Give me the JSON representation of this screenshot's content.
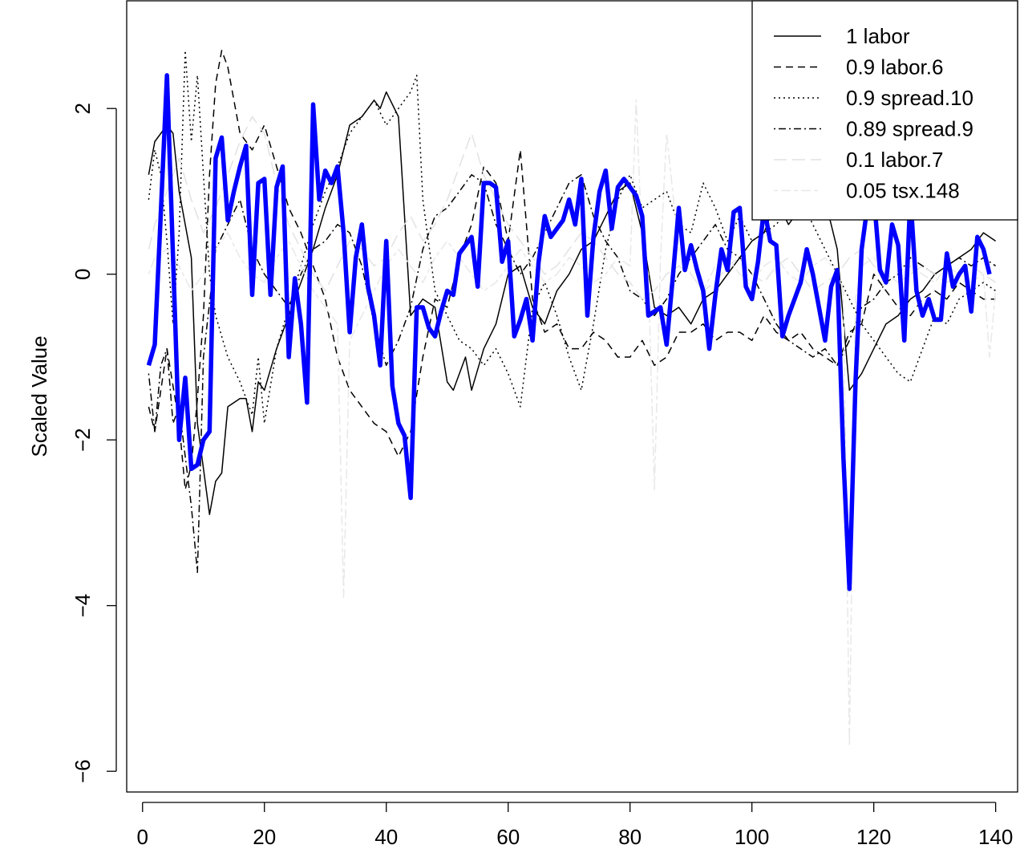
{
  "chart_data": {
    "type": "line",
    "title": "",
    "xlabel": "",
    "ylabel": "Scaled Value",
    "xlim": [
      -2.6,
      143.6
    ],
    "ylim": [
      -6.25,
      3.3
    ],
    "xticks": [
      0,
      20,
      40,
      60,
      80,
      100,
      120,
      140
    ],
    "yticks": [
      -6,
      -4,
      -2,
      0,
      2
    ],
    "legend_position": "top-right",
    "grid": false,
    "series": [
      {
        "name": "1 labor",
        "color": "#000000",
        "dash": "solid",
        "width": "thin",
        "x": [
          1,
          2,
          4,
          5,
          6,
          8,
          9,
          11,
          12,
          13,
          14,
          16,
          17,
          18,
          19,
          20,
          22,
          24,
          26,
          28,
          30,
          32,
          34,
          36,
          37,
          38,
          39,
          40,
          42,
          44,
          46,
          48,
          50,
          51,
          53,
          54,
          56,
          58,
          60,
          62,
          64,
          66,
          68,
          70,
          72,
          74,
          76,
          78,
          80,
          82,
          84,
          86,
          88,
          90,
          92,
          94,
          96,
          98,
          100,
          102,
          104,
          106,
          108,
          110,
          112,
          114,
          116,
          118,
          120,
          122,
          124,
          126,
          128,
          130,
          132,
          134,
          136,
          138,
          140
        ],
        "values": [
          1.2,
          1.6,
          1.8,
          1.7,
          1.0,
          0.2,
          -1.8,
          -2.9,
          -2.5,
          -2.4,
          -1.6,
          -1.5,
          -1.5,
          -1.9,
          -1.3,
          -1.4,
          -0.9,
          -0.5,
          -0.1,
          0.3,
          0.8,
          1.2,
          1.8,
          1.9,
          2.0,
          2.1,
          2.0,
          2.2,
          1.9,
          -0.5,
          -0.3,
          -0.4,
          -1.3,
          -1.4,
          -1.0,
          -1.4,
          -0.9,
          -0.6,
          0.0,
          0.1,
          -0.4,
          -0.6,
          -0.2,
          0.0,
          0.3,
          0.4,
          0.7,
          1.0,
          1.1,
          0.5,
          -0.4,
          -0.5,
          -0.4,
          -0.6,
          -0.3,
          -0.2,
          0.0,
          0.2,
          0.4,
          0.5,
          0.9,
          0.6,
          0.8,
          1.1,
          0.9,
          0.3,
          -1.4,
          -1.2,
          -0.9,
          -0.6,
          -0.5,
          -0.3,
          -0.2,
          0.0,
          0.1,
          0.2,
          0.3,
          0.5,
          0.4
        ]
      },
      {
        "name": "0.9 labor.6",
        "color": "#000000",
        "dash": "dashed",
        "width": "thin",
        "x": [
          1,
          2,
          4,
          6,
          7,
          8,
          9,
          10,
          11,
          12,
          13,
          14,
          16,
          18,
          20,
          22,
          24,
          26,
          28,
          30,
          32,
          34,
          36,
          38,
          40,
          42,
          44,
          46,
          48,
          50,
          52,
          54,
          56,
          58,
          60,
          62,
          64,
          66,
          68,
          70,
          72,
          74,
          76,
          78,
          80,
          82,
          84,
          86,
          88,
          90,
          92,
          94,
          96,
          98,
          100,
          102,
          104,
          106,
          108,
          110,
          112,
          114,
          116,
          118,
          120,
          122,
          124,
          126,
          128,
          130,
          132,
          134,
          136,
          138,
          140
        ],
        "values": [
          -1.6,
          -1.9,
          -0.9,
          -1.8,
          -2.6,
          -2.3,
          -1.5,
          -0.5,
          1.2,
          2.3,
          2.7,
          2.5,
          1.7,
          1.5,
          1.8,
          1.3,
          0.8,
          0.5,
          0.1,
          -0.3,
          -1.0,
          -1.4,
          -1.6,
          -1.8,
          -1.9,
          -2.2,
          -1.9,
          -1.0,
          -0.3,
          -0.4,
          0.2,
          0.6,
          1.3,
          1.1,
          0.4,
          1.5,
          -0.3,
          -0.7,
          -0.6,
          -0.9,
          -0.9,
          -0.7,
          -0.8,
          -1.0,
          -1.0,
          -0.8,
          -1.1,
          -1.0,
          -0.7,
          -0.7,
          -0.6,
          -0.8,
          -0.7,
          -0.7,
          -0.8,
          -0.5,
          -0.7,
          -0.8,
          -0.7,
          -0.9,
          -1.0,
          -1.1,
          -0.7,
          -0.6,
          0.0,
          -0.2,
          -0.4,
          -0.5,
          -0.3,
          -0.2,
          -0.3,
          -0.1,
          -0.2,
          -0.3,
          -0.3
        ]
      },
      {
        "name": "0.9 spread.10",
        "color": "#000000",
        "dash": "dotted",
        "width": "thin",
        "x": [
          1,
          2,
          3,
          4,
          5,
          6,
          7,
          8,
          9,
          10,
          11,
          12,
          14,
          16,
          18,
          19,
          20,
          22,
          24,
          26,
          28,
          30,
          32,
          34,
          36,
          38,
          40,
          42,
          44,
          45,
          46,
          48,
          50,
          52,
          54,
          56,
          58,
          60,
          62,
          64,
          66,
          68,
          70,
          72,
          74,
          76,
          78,
          80,
          82,
          84,
          86,
          88,
          90,
          92,
          94,
          96,
          98,
          100,
          102,
          104,
          106,
          108,
          110,
          112,
          114,
          116,
          118,
          120,
          122,
          124,
          126,
          128,
          130,
          132,
          134,
          136,
          138,
          140
        ],
        "values": [
          0.9,
          1.5,
          1.2,
          0.4,
          -0.6,
          0.5,
          2.7,
          1.6,
          2.4,
          1.2,
          0.0,
          -0.5,
          -1.0,
          -1.3,
          -1.7,
          -1.0,
          -1.8,
          -0.9,
          -0.4,
          0.1,
          0.6,
          1.0,
          1.3,
          1.7,
          1.9,
          2.1,
          1.8,
          2.0,
          2.2,
          2.4,
          0.9,
          -0.2,
          -0.5,
          -0.8,
          -0.9,
          -1.1,
          -0.9,
          -1.2,
          -1.6,
          -0.4,
          -0.1,
          -0.5,
          -1.0,
          -1.4,
          -0.6,
          0.3,
          0.9,
          1.2,
          0.8,
          0.9,
          1.0,
          0.6,
          0.5,
          1.1,
          0.8,
          0.4,
          0.7,
          0.4,
          0.5,
          0.6,
          0.8,
          0.9,
          0.6,
          0.3,
          0.0,
          -0.3,
          -0.6,
          -0.8,
          -1.0,
          -1.2,
          -1.3,
          -0.9,
          -0.5,
          -0.6,
          -0.3,
          -0.2,
          -0.1,
          -0.2
        ]
      },
      {
        "name": "0.89 spread.9",
        "color": "#000000",
        "dash": "dotdash",
        "width": "thin",
        "x": [
          1,
          2,
          3,
          4,
          5,
          6,
          7,
          8,
          9,
          10,
          12,
          14,
          16,
          18,
          20,
          22,
          24,
          26,
          28,
          30,
          32,
          34,
          36,
          38,
          40,
          42,
          44,
          46,
          48,
          50,
          52,
          54,
          56,
          58,
          60,
          62,
          64,
          66,
          68,
          70,
          72,
          74,
          76,
          78,
          80,
          82,
          84,
          86,
          88,
          90,
          92,
          94,
          96,
          98,
          100,
          102,
          104,
          106,
          108,
          110,
          112,
          114,
          116,
          118,
          120,
          122,
          124,
          126,
          128,
          130,
          132,
          134,
          136,
          138,
          140
        ],
        "values": [
          -1.2,
          -1.9,
          -1.1,
          -0.9,
          -1.8,
          -1.6,
          -2.2,
          -2.8,
          -3.6,
          -1.0,
          0.3,
          0.6,
          0.9,
          0.3,
          0.0,
          -0.2,
          -0.4,
          0.0,
          0.3,
          0.4,
          0.6,
          0.5,
          0.1,
          -0.6,
          -1.1,
          -0.8,
          -0.4,
          0.3,
          0.7,
          0.8,
          1.0,
          1.2,
          1.1,
          0.6,
          0.3,
          0.0,
          0.2,
          0.5,
          0.8,
          1.1,
          1.2,
          0.7,
          0.4,
          0.2,
          -0.2,
          -0.3,
          -0.5,
          -0.3,
          0.0,
          0.2,
          0.4,
          0.6,
          0.3,
          0.2,
          0.0,
          -0.3,
          -0.6,
          -0.8,
          -0.9,
          -1.0,
          -0.9,
          -1.1,
          -0.8,
          -0.4,
          -0.3,
          -0.1,
          0.0,
          0.2,
          0.1,
          0.0,
          0.1,
          0.2,
          0.1,
          0.2,
          0.1
        ]
      },
      {
        "name": "0.1 labor.7",
        "color": "#e2e2e2",
        "dash": "longdash",
        "width": "thin",
        "x": [
          1,
          2,
          4,
          6,
          8,
          10,
          12,
          14,
          16,
          18,
          20,
          22,
          24,
          26,
          28,
          30,
          32,
          34,
          36,
          38,
          40,
          42,
          44,
          46,
          48,
          50,
          52,
          54,
          56,
          58,
          60,
          62,
          64,
          66,
          68,
          70,
          72,
          74,
          76,
          78,
          80,
          82,
          84,
          86,
          88,
          90,
          92,
          94,
          96,
          98,
          100,
          102,
          104,
          106,
          108,
          110,
          112,
          114,
          116,
          118,
          120,
          122,
          124,
          126,
          128,
          130,
          132,
          134,
          136,
          138,
          140
        ],
        "values": [
          0.3,
          0.6,
          1.0,
          1.4,
          0.9,
          0.5,
          0.8,
          1.2,
          1.6,
          1.9,
          1.7,
          1.1,
          0.6,
          0.3,
          0.0,
          -0.2,
          0.1,
          0.4,
          0.3,
          0.1,
          0.2,
          0.5,
          0.7,
          0.4,
          0.6,
          0.9,
          1.3,
          1.7,
          1.2,
          0.9,
          0.6,
          0.4,
          0.2,
          0.0,
          0.1,
          0.3,
          0.5,
          0.4,
          0.2,
          0.0,
          -0.1,
          -0.3,
          -0.2,
          0.0,
          0.1,
          0.0,
          -0.2,
          -0.1,
          0.1,
          0.2,
          0.0,
          -0.1,
          0.1,
          0.2,
          0.0,
          -0.2,
          -0.1,
          0.0,
          0.2,
          0.3,
          0.1,
          0.0,
          -0.1,
          0.0,
          0.1,
          0.0,
          -0.1,
          0.0,
          0.1,
          0.0,
          -0.1
        ]
      },
      {
        "name": "0.05 tsx.148",
        "color": "#e8e8e8",
        "dash": "twodash",
        "width": "thin",
        "x": [
          1,
          2,
          4,
          6,
          8,
          10,
          12,
          14,
          16,
          18,
          20,
          22,
          24,
          26,
          28,
          30,
          32,
          33,
          34,
          36,
          38,
          40,
          42,
          44,
          46,
          48,
          50,
          52,
          54,
          56,
          58,
          60,
          62,
          64,
          66,
          68,
          70,
          72,
          74,
          76,
          78,
          80,
          81,
          82,
          83,
          84,
          85,
          86,
          88,
          90,
          92,
          94,
          96,
          98,
          100,
          102,
          104,
          106,
          108,
          110,
          112,
          114,
          115,
          116,
          117,
          118,
          120,
          122,
          124,
          126,
          128,
          130,
          132,
          134,
          136,
          138,
          139,
          140
        ],
        "values": [
          0.0,
          0.2,
          0.3,
          0.1,
          -0.2,
          0.0,
          0.3,
          0.5,
          0.2,
          0.0,
          -0.1,
          0.2,
          0.4,
          0.1,
          -0.2,
          -0.4,
          -0.6,
          -3.9,
          -0.8,
          -0.5,
          -0.2,
          0.1,
          0.3,
          0.1,
          -0.1,
          0.2,
          0.4,
          0.2,
          0.0,
          -0.2,
          -0.1,
          0.1,
          0.3,
          0.1,
          -0.1,
          0.0,
          0.2,
          0.1,
          -0.1,
          0.0,
          0.2,
          0.1,
          2.1,
          0.3,
          0.0,
          -2.6,
          0.2,
          1.7,
          0.3,
          0.0,
          -0.2,
          0.1,
          0.2,
          0.0,
          -0.1,
          0.1,
          0.2,
          0.0,
          -0.1,
          0.1,
          0.2,
          0.0,
          -0.2,
          -5.7,
          -0.3,
          0.1,
          0.2,
          0.0,
          -0.1,
          0.1,
          0.0,
          -0.1,
          0.1,
          0.0,
          -0.1,
          0.0,
          -1.0,
          -0.2
        ]
      },
      {
        "name": "",
        "color": "#0000ff",
        "dash": "solid",
        "width": "thick",
        "x": [
          1,
          2,
          3,
          4,
          5,
          6,
          7,
          8,
          9,
          10,
          11,
          12,
          13,
          14,
          15,
          16,
          17,
          18,
          19,
          20,
          21,
          22,
          23,
          24,
          25,
          26,
          27,
          28,
          29,
          30,
          31,
          32,
          33,
          34,
          35,
          36,
          37,
          38,
          39,
          40,
          41,
          42,
          43,
          44,
          45,
          46,
          47,
          48,
          49,
          50,
          51,
          52,
          53,
          54,
          55,
          56,
          57,
          58,
          59,
          60,
          61,
          62,
          63,
          64,
          65,
          66,
          67,
          68,
          69,
          70,
          71,
          72,
          73,
          74,
          75,
          76,
          77,
          78,
          79,
          80,
          81,
          82,
          83,
          84,
          85,
          86,
          87,
          88,
          89,
          90,
          91,
          92,
          93,
          94,
          95,
          96,
          97,
          98,
          99,
          100,
          101,
          102,
          103,
          104,
          105,
          106,
          107,
          108,
          109,
          110,
          111,
          112,
          113,
          114,
          115,
          116,
          117,
          118,
          119,
          120,
          121,
          122,
          123,
          124,
          125,
          126,
          127,
          128,
          129,
          130,
          131,
          132,
          133,
          134,
          135,
          136,
          137,
          138,
          139
        ],
        "values": [
          -1.1,
          -0.85,
          0.75,
          2.4,
          0.2,
          -2.0,
          -1.25,
          -2.35,
          -2.3,
          -2.0,
          -1.9,
          1.4,
          1.65,
          0.65,
          1.0,
          1.3,
          1.55,
          -0.25,
          1.1,
          1.15,
          -0.25,
          1.05,
          1.3,
          -1.0,
          -0.05,
          -0.6,
          -1.55,
          2.05,
          0.9,
          1.25,
          1.1,
          1.3,
          0.5,
          -0.7,
          0.2,
          0.6,
          -0.15,
          -0.5,
          -1.1,
          0.4,
          -1.35,
          -1.8,
          -1.95,
          -2.7,
          -0.4,
          -0.4,
          -0.65,
          -0.75,
          -0.45,
          -0.2,
          -0.25,
          0.25,
          0.35,
          0.45,
          -0.15,
          1.1,
          1.1,
          1.05,
          0.15,
          0.4,
          -0.75,
          -0.55,
          -0.3,
          -0.8,
          0.15,
          0.7,
          0.45,
          0.55,
          0.65,
          0.9,
          0.6,
          1.15,
          -0.5,
          0.45,
          1.0,
          1.25,
          0.55,
          1.05,
          1.15,
          1.05,
          0.95,
          0.7,
          -0.5,
          -0.45,
          -0.4,
          -0.85,
          -0.05,
          0.8,
          0.05,
          0.35,
          0.05,
          -0.2,
          -0.9,
          -0.25,
          0.3,
          0.05,
          0.75,
          0.8,
          -0.15,
          -0.3,
          0.15,
          0.8,
          0.4,
          0.35,
          -0.75,
          -0.5,
          -0.3,
          -0.1,
          0.3,
          0.0,
          -0.4,
          -0.8,
          -0.15,
          0.05,
          -2.2,
          -3.8,
          -1.3,
          0.3,
          0.85,
          0.95,
          0.05,
          -0.1,
          0.6,
          0.35,
          -0.8,
          0.95,
          -0.2,
          -0.5,
          -0.3,
          -0.55,
          -0.55,
          0.25,
          -0.15,
          0.0,
          0.1,
          -0.45,
          0.45,
          0.3,
          0.0
        ]
      }
    ]
  }
}
